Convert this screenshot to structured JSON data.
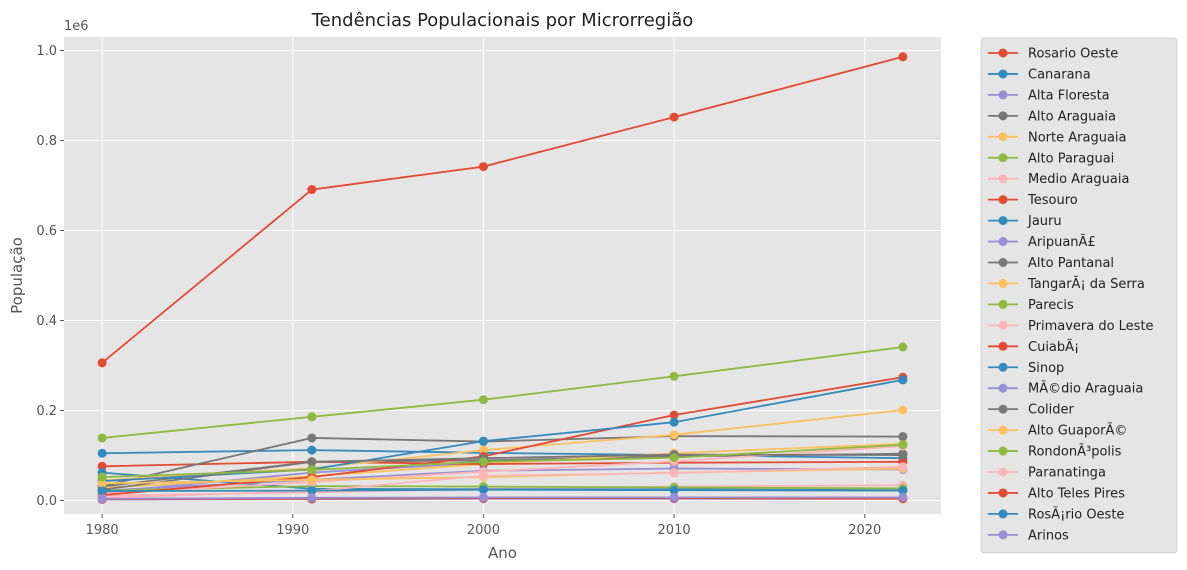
{
  "chart_data": {
    "type": "line",
    "title": "Tendências Populacionais por Microrregião",
    "xlabel": "Ano",
    "ylabel": "População",
    "y_scale_label": "1e6",
    "x": [
      1980,
      1991,
      2000,
      2010,
      2022
    ],
    "xlim": [
      1978,
      2024
    ],
    "ylim": [
      -0.03,
      1.03
    ],
    "xticks": [
      1980,
      1990,
      2000,
      2010,
      2020
    ],
    "yticks": [
      0.0,
      0.2,
      0.4,
      0.6,
      0.8,
      1.0
    ],
    "ytick_labels": [
      "0.0",
      "0.2",
      "0.4",
      "0.6",
      "0.8",
      "1.0"
    ],
    "grid": true,
    "legend_position": "outside-right",
    "series": [
      {
        "name": "Rosario Oeste",
        "color": "#E24A33",
        "values": [
          0.306,
          0.691,
          0.742,
          0.852,
          0.986
        ]
      },
      {
        "name": "Canarana",
        "color": "#348ABD",
        "values": [
          0.105,
          0.112,
          0.106,
          0.101,
          0.094
        ]
      },
      {
        "name": "Alta Floresta",
        "color": "#988ED5",
        "values": [
          0.018,
          0.062,
          0.084,
          0.101,
          0.102
        ]
      },
      {
        "name": "Alto Araguaia",
        "color": "#777777",
        "values": [
          0.031,
          0.086,
          0.089,
          0.098,
          0.104
        ]
      },
      {
        "name": "Norte Araguaia",
        "color": "#FBC15E",
        "values": [
          0.028,
          0.054,
          0.081,
          0.105,
          0.126
        ]
      },
      {
        "name": "Alto Paraguai",
        "color": "#8EBA42",
        "values": [
          0.139,
          0.186,
          0.224,
          0.276,
          0.341
        ]
      },
      {
        "name": "Medio Araguaia",
        "color": "#FFB5B8",
        "values": [
          0.011,
          0.018,
          0.026,
          0.031,
          0.034
        ]
      },
      {
        "name": "Tesouro",
        "color": "#E24A33",
        "values": [
          0.076,
          0.086,
          0.081,
          0.084,
          0.086
        ]
      },
      {
        "name": "Jauru",
        "color": "#348ABD",
        "values": [
          0.062,
          0.026,
          0.025,
          0.025,
          0.023
        ]
      },
      {
        "name": "AripuanÃ£",
        "color": "#988ED5",
        "values": [
          0.022,
          0.046,
          0.066,
          0.071,
          0.069
        ]
      },
      {
        "name": "Alto Pantanal",
        "color": "#777777",
        "values": [
          0.032,
          0.139,
          0.131,
          0.143,
          0.142
        ]
      },
      {
        "name": "TangarÃ¡ da Serra",
        "color": "#FBC15E",
        "values": [
          0.045,
          0.072,
          0.112,
          0.146,
          0.201
        ]
      },
      {
        "name": "Parecis",
        "color": "#8EBA42",
        "values": [
          0.022,
          0.032,
          0.031,
          0.029,
          0.027
        ]
      },
      {
        "name": "Primavera do Leste",
        "color": "#FFB5B8",
        "values": [
          0.015,
          0.041,
          0.064,
          0.087,
          0.121
        ]
      },
      {
        "name": "CuiabÃ¡",
        "color": "#E24A33",
        "values": [
          0.012,
          0.052,
          0.098,
          0.19,
          0.274
        ]
      },
      {
        "name": "Sinop",
        "color": "#348ABD",
        "values": [
          0.043,
          0.069,
          0.132,
          0.174,
          0.268
        ]
      },
      {
        "name": "MÃ©dio Araguaia",
        "color": "#988ED5",
        "values": [
          0.002,
          0.003,
          0.004,
          0.004,
          0.004
        ]
      },
      {
        "name": "Colider",
        "color": "#777777",
        "values": [
          0.024,
          0.086,
          0.094,
          0.102,
          0.101
        ]
      },
      {
        "name": "Alto GuaporÃ©",
        "color": "#FBC15E",
        "values": [
          0.038,
          0.046,
          0.052,
          0.062,
          0.071
        ]
      },
      {
        "name": "RondonÃ³polis",
        "color": "#8EBA42",
        "values": [
          0.052,
          0.068,
          0.086,
          0.095,
          0.124
        ]
      },
      {
        "name": "Paranatinga",
        "color": "#FFB5B8",
        "values": [
          0.006,
          0.021,
          0.055,
          0.061,
          0.075
        ]
      },
      {
        "name": "Alto Teles Pires",
        "color": "#E24A33",
        "values": [
          0.003,
          0.004,
          0.005,
          0.005,
          0.004
        ]
      },
      {
        "name": "RosÃ¡rio Oeste",
        "color": "#348ABD",
        "values": [
          0.021,
          0.022,
          0.024,
          0.023,
          0.022
        ]
      },
      {
        "name": "Arinos",
        "color": "#988ED5",
        "values": [
          0.004,
          0.006,
          0.007,
          0.007,
          0.007
        ]
      }
    ]
  }
}
